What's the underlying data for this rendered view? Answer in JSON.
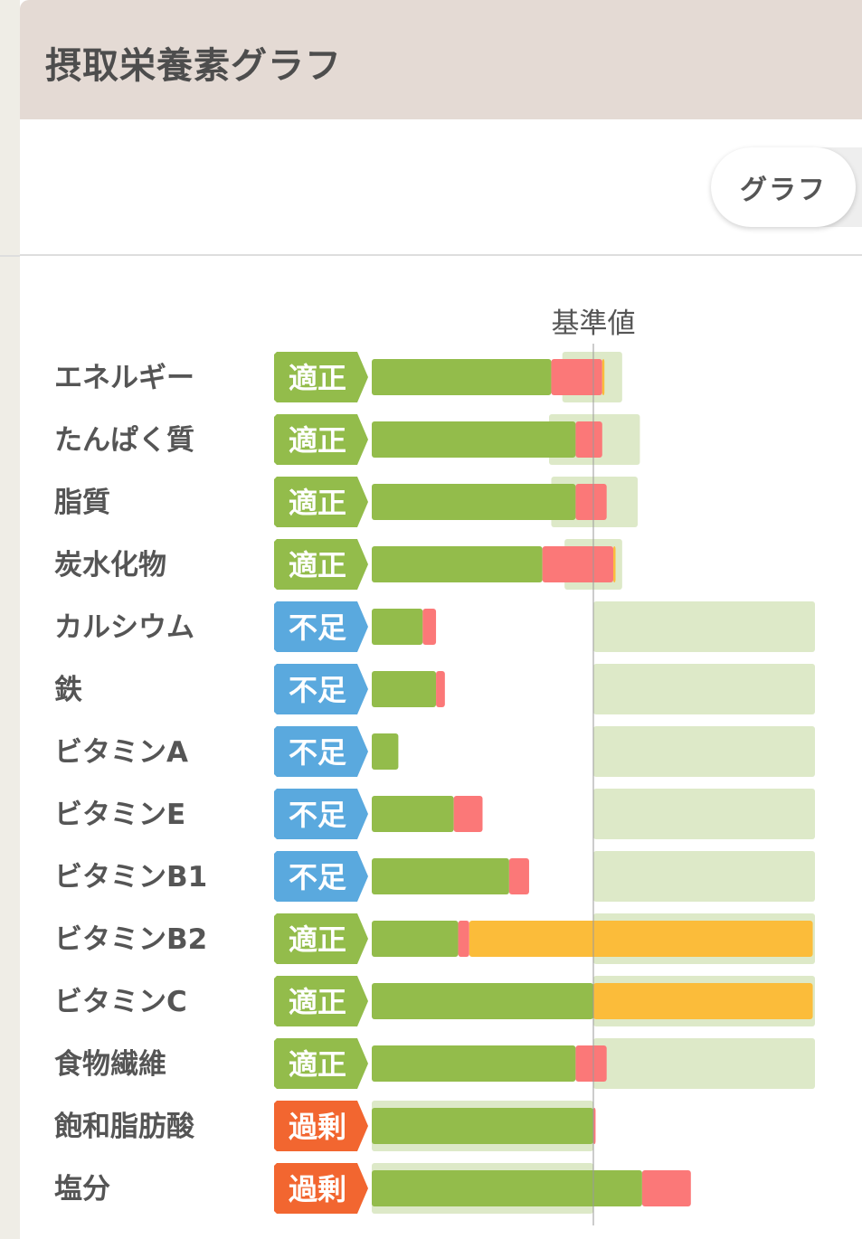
{
  "header": {
    "title": "摂取栄養素グラフ"
  },
  "toggle": {
    "label": "グラフ"
  },
  "colors": {
    "green": "#93bc4b",
    "red": "#fb7878",
    "orange": "#fbbc3a",
    "range": "#dde9c8",
    "badge_ok": "#93bc4b",
    "badge_low": "#5aa9de",
    "badge_high": "#f26630"
  },
  "chart_data": {
    "type": "bar",
    "reference_label": "基準値",
    "scale": "fraction of reference value (1.0 = 基準値)",
    "rows": [
      {
        "name": "エネルギー",
        "status": "適正",
        "level": "ok",
        "green": 0.81,
        "red": 0.23,
        "orange": 0.01,
        "range": [
          0.86,
          1.13
        ]
      },
      {
        "name": "たんぱく質",
        "status": "適正",
        "level": "ok",
        "green": 0.92,
        "red": 0.12,
        "orange": 0.0,
        "range": [
          0.8,
          1.21
        ]
      },
      {
        "name": "脂質",
        "status": "適正",
        "level": "ok",
        "green": 0.92,
        "red": 0.14,
        "orange": 0.0,
        "range": [
          0.81,
          1.2
        ]
      },
      {
        "name": "炭水化物",
        "status": "適正",
        "level": "ok",
        "green": 0.77,
        "red": 0.32,
        "orange": 0.01,
        "range": [
          0.87,
          1.13
        ]
      },
      {
        "name": "カルシウム",
        "status": "不足",
        "level": "low",
        "green": 0.23,
        "red": 0.06,
        "orange": 0.0,
        "range": [
          1.0,
          2.0
        ]
      },
      {
        "name": "鉄",
        "status": "不足",
        "level": "low",
        "green": 0.29,
        "red": 0.04,
        "orange": 0.0,
        "range": [
          1.0,
          2.0
        ]
      },
      {
        "name": "ビタミンA",
        "status": "不足",
        "level": "low",
        "green": 0.12,
        "red": 0.0,
        "orange": 0.0,
        "range": [
          1.0,
          2.0
        ]
      },
      {
        "name": "ビタミンE",
        "status": "不足",
        "level": "low",
        "green": 0.37,
        "red": 0.13,
        "orange": 0.0,
        "range": [
          1.0,
          2.0
        ]
      },
      {
        "name": "ビタミンB1",
        "status": "不足",
        "level": "low",
        "green": 0.62,
        "red": 0.09,
        "orange": 0.0,
        "range": [
          1.0,
          2.0
        ]
      },
      {
        "name": "ビタミンB2",
        "status": "適正",
        "level": "ok",
        "green": 0.39,
        "red": 0.05,
        "orange": 1.55,
        "range": [
          1.0,
          2.0
        ]
      },
      {
        "name": "ビタミンC",
        "status": "適正",
        "level": "ok",
        "green": 1.0,
        "red": 0.0,
        "orange": 0.99,
        "range": [
          1.0,
          2.0
        ]
      },
      {
        "name": "食物繊維",
        "status": "適正",
        "level": "ok",
        "green": 0.92,
        "red": 0.14,
        "orange": 0.0,
        "range": [
          1.0,
          2.0
        ]
      },
      {
        "name": "飽和脂肪酸",
        "status": "過剰",
        "level": "high",
        "green": 1.0,
        "red": 0.01,
        "orange": 0.0,
        "range": [
          0.0,
          1.0
        ]
      },
      {
        "name": "塩分",
        "status": "過剰",
        "level": "high",
        "green": 1.22,
        "red": 0.22,
        "orange": 0.0,
        "range": [
          0.0,
          1.0
        ]
      }
    ]
  }
}
